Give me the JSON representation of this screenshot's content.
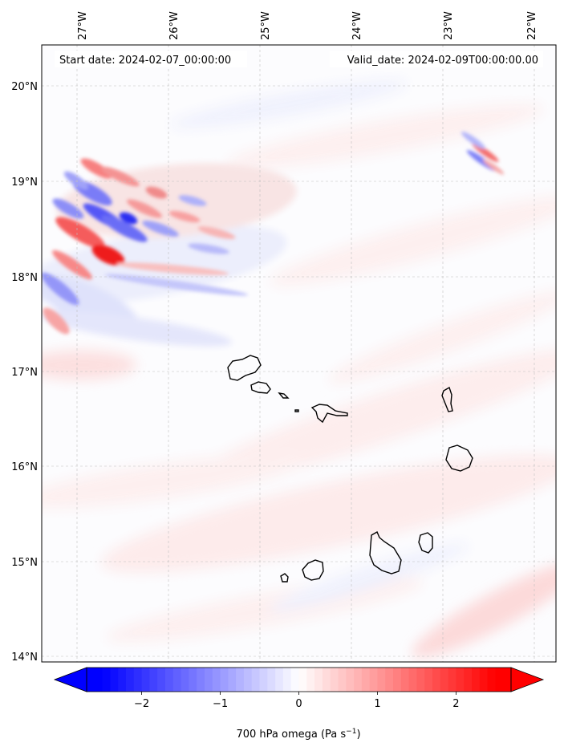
{
  "map": {
    "start_label": "Start date: 2024-02-07_00:00:00",
    "valid_label": "Valid_date: 2024-02-09T00:00:00.00",
    "lon_ticks": [
      "27°W",
      "26°W",
      "25°W",
      "24°W",
      "23°W",
      "22°W"
    ],
    "lat_ticks": [
      "20°N",
      "19°N",
      "18°N",
      "17°N",
      "16°N",
      "15°N",
      "14°N"
    ],
    "features": [
      {
        "name": "Santo Antão",
        "type": "island"
      },
      {
        "name": "São Vicente",
        "type": "island"
      },
      {
        "name": "Santa Luzia",
        "type": "island"
      },
      {
        "name": "São Nicolau",
        "type": "island"
      },
      {
        "name": "Sal",
        "type": "island"
      },
      {
        "name": "Boa Vista",
        "type": "island"
      },
      {
        "name": "Fogo",
        "type": "island"
      },
      {
        "name": "Brava",
        "type": "island"
      },
      {
        "name": "Santiago",
        "type": "island"
      },
      {
        "name": "Maio",
        "type": "island"
      }
    ],
    "colors": {
      "negative": "#0000ff",
      "zero": "#ffffff",
      "positive": "#ff0000"
    },
    "gridlines": true
  },
  "colorbar": {
    "min": -2.7,
    "max": 2.7,
    "ticks": [
      "−2",
      "−1",
      "0",
      "1",
      "2"
    ],
    "tick_values": [
      -2,
      -1,
      0,
      1,
      2
    ],
    "label_main": "700 hPa omega (Pa s",
    "label_sup": "−1",
    "label_end": ")",
    "extend": "both",
    "cmap": "bwr"
  }
}
